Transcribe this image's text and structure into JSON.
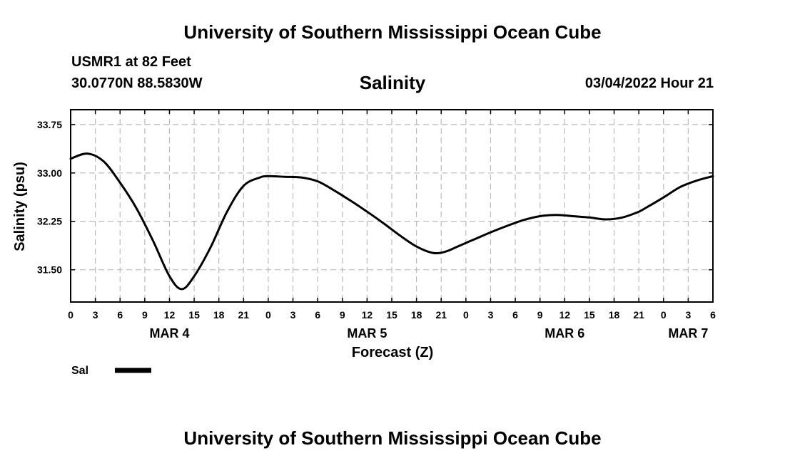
{
  "header": {
    "title": "University of Southern Mississippi Ocean Cube",
    "station": "USMR1 at 82 Feet",
    "coords": "30.0770N  88.5830W",
    "chart_name": "Salinity",
    "valid_time": "03/04/2022 Hour 21"
  },
  "footer": {
    "title": "University of Southern Mississippi Ocean Cube"
  },
  "colors": {
    "line": "#000000",
    "grid": "#bbbbbb",
    "frame": "#000000"
  },
  "chart_data": {
    "type": "line",
    "title": "Salinity",
    "xlabel": "Forecast (Z)",
    "ylabel": "Salinity (psu)",
    "xlim": [
      0,
      78
    ],
    "ylim": [
      31.0,
      33.98
    ],
    "grid": true,
    "x_tick_labels": [
      "0",
      "3",
      "6",
      "9",
      "12",
      "15",
      "18",
      "21",
      "0",
      "3",
      "6",
      "9",
      "12",
      "15",
      "18",
      "21",
      "0",
      "3",
      "6",
      "9",
      "12",
      "15",
      "18",
      "21",
      "0",
      "3",
      "6"
    ],
    "y_ticks": [
      31.5,
      32.25,
      33.0,
      33.75
    ],
    "y_tick_labels": [
      "31.50",
      "32.25",
      "33.00",
      "33.75"
    ],
    "date_labels": [
      {
        "label": "MAR 4",
        "x": 12
      },
      {
        "label": "MAR 5",
        "x": 36
      },
      {
        "label": "MAR 6",
        "x": 60
      },
      {
        "label": "MAR 7",
        "x": 75
      }
    ],
    "legend": [
      {
        "name": "Sal",
        "placement": "bottom-left"
      }
    ],
    "series": [
      {
        "name": "Sal",
        "x": [
          0,
          2,
          4,
          6,
          8,
          10,
          12,
          13.5,
          15,
          17,
          19,
          21,
          23,
          24,
          26,
          28,
          30,
          32,
          34,
          36,
          38,
          40,
          42,
          44,
          45.5,
          47,
          49,
          51,
          53,
          55,
          57,
          59,
          61,
          63,
          65,
          67,
          69,
          70,
          72,
          74,
          76,
          78
        ],
        "values": [
          33.22,
          33.3,
          33.18,
          32.85,
          32.45,
          31.95,
          31.4,
          31.2,
          31.4,
          31.85,
          32.4,
          32.8,
          32.93,
          32.95,
          32.94,
          32.93,
          32.87,
          32.73,
          32.57,
          32.4,
          32.22,
          32.03,
          31.86,
          31.76,
          31.78,
          31.86,
          31.97,
          32.08,
          32.18,
          32.27,
          32.33,
          32.35,
          32.33,
          32.31,
          32.28,
          32.31,
          32.4,
          32.47,
          32.62,
          32.78,
          32.88,
          32.95
        ]
      }
    ]
  }
}
